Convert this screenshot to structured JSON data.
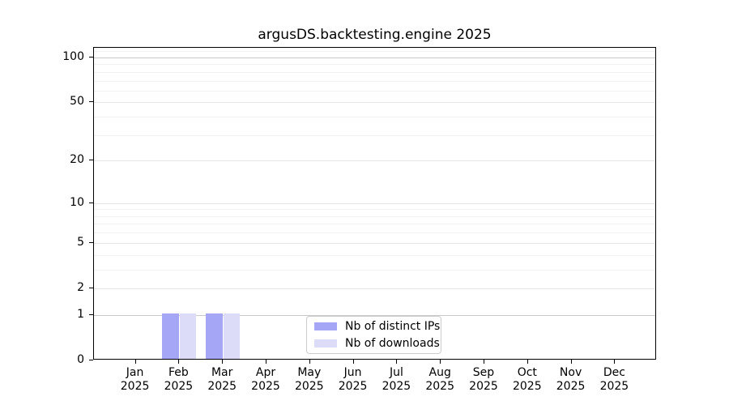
{
  "title": "argusDS.backtesting.engine 2025",
  "chart_data": {
    "type": "bar",
    "title": "argusDS.backtesting.engine 2025",
    "categories": [
      "Jan",
      "Feb",
      "Mar",
      "Apr",
      "May",
      "Jun",
      "Jul",
      "Aug",
      "Sep",
      "Oct",
      "Nov",
      "Dec"
    ],
    "year_label": "2025",
    "series": [
      {
        "name": "Nb of distinct IPs",
        "color": "#a6a6f7",
        "values": [
          0,
          1,
          1,
          0,
          0,
          0,
          0,
          0,
          0,
          0,
          0,
          0
        ]
      },
      {
        "name": "Nb of downloads",
        "color": "#dcdcf9",
        "values": [
          0,
          1,
          1,
          0,
          0,
          0,
          0,
          0,
          0,
          0,
          0,
          0
        ]
      }
    ],
    "xlabel": "",
    "ylabel": "",
    "yscale": "log1p",
    "ylim": [
      0,
      116
    ],
    "yticks": [
      0,
      1,
      2,
      5,
      10,
      20,
      50,
      100
    ],
    "yticks_minor": [
      3,
      4,
      6,
      7,
      8,
      9,
      30,
      40,
      60,
      70,
      80,
      90,
      110
    ],
    "grid": "both",
    "legend_position": "lower center"
  }
}
